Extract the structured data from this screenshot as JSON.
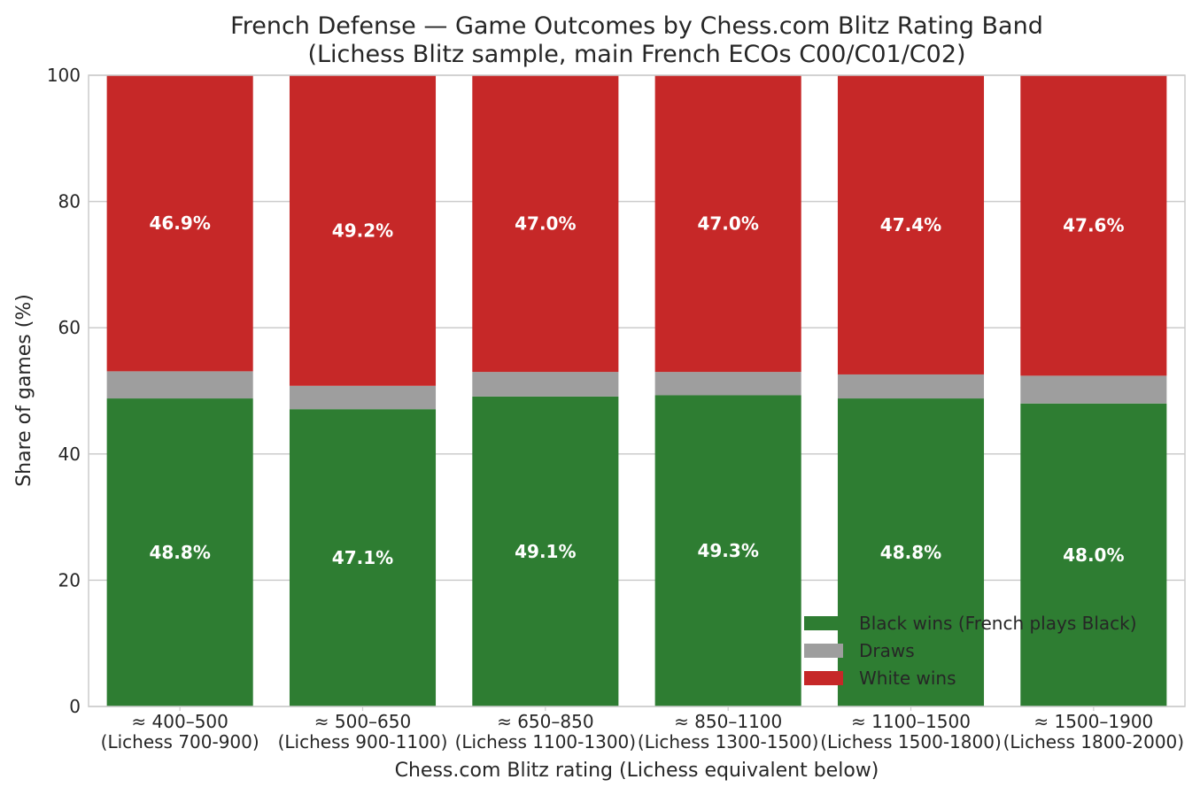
{
  "chart_data": {
    "type": "bar",
    "stacked": true,
    "title": "French Defense — Game Outcomes by Chess.com Blitz Rating Band",
    "subtitle": "(Lichess Blitz sample, main French ECOs C00/C01/C02)",
    "xlabel": "Chess.com Blitz rating (Lichess equivalent below)",
    "ylabel": "Share of games (%)",
    "ylim": [
      0,
      100
    ],
    "yticks": [
      "0",
      "20",
      "40",
      "60",
      "80",
      "100"
    ],
    "grid": true,
    "legend_position": "lower-right",
    "categories": [
      {
        "line1": "≈ 400–500",
        "line2": "(Lichess 700-900)"
      },
      {
        "line1": "≈ 500–650",
        "line2": "(Lichess 900-1100)"
      },
      {
        "line1": "≈ 650–850",
        "line2": "(Lichess 1100-1300)"
      },
      {
        "line1": "≈ 850–1100",
        "line2": "(Lichess 1300-1500)"
      },
      {
        "line1": "≈ 1100–1500",
        "line2": "(Lichess 1500-1800)"
      },
      {
        "line1": "≈ 1500–1900",
        "line2": "(Lichess 1800-2000)"
      }
    ],
    "series": [
      {
        "name": "Black wins (French plays Black)",
        "color": "#2e7d32",
        "values": [
          48.8,
          47.1,
          49.1,
          49.3,
          48.8,
          48.0
        ],
        "labels": [
          "48.8%",
          "47.1%",
          "49.1%",
          "49.3%",
          "48.8%",
          "48.0%"
        ]
      },
      {
        "name": "Draws",
        "color": "#9e9e9e",
        "values": [
          4.3,
          3.7,
          3.9,
          3.7,
          3.8,
          4.4
        ],
        "labels": []
      },
      {
        "name": "White wins",
        "color": "#c62828",
        "values": [
          46.9,
          49.2,
          47.0,
          47.0,
          47.4,
          47.6
        ],
        "labels": [
          "46.9%",
          "49.2%",
          "47.0%",
          "47.0%",
          "47.4%",
          "47.6%"
        ]
      }
    ]
  }
}
